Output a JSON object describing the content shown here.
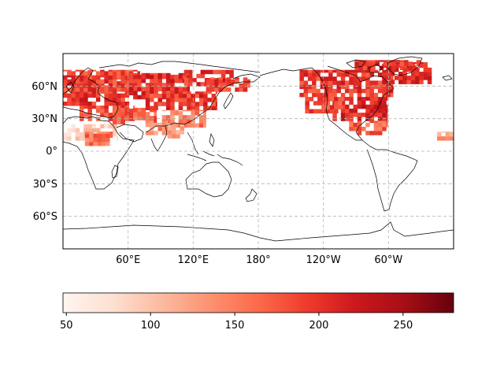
{
  "map": {
    "projection": "PlateCarree",
    "central_longitude": 180,
    "lon_range": [
      5,
      360
    ],
    "lat_range": [
      -90,
      90
    ],
    "gridlines": "dashed gray",
    "lat_labels": [
      "60°N",
      "30°N",
      "0°",
      "30°S",
      "60°S"
    ],
    "lon_labels": [
      "60°E",
      "120°E",
      "180°",
      "120°W",
      "60°W"
    ],
    "field": "heatmap (Reds colormap), land cells north of ~10°S, missing over ocean",
    "regions_shaded": [
      {
        "region": "Europe / North Africa / Sahara",
        "approx_value": 200
      },
      {
        "region": "Siberia / Russia",
        "approx_value": 200
      },
      {
        "region": "South & East Asia",
        "approx_value": 170
      },
      {
        "region": "North America / Canada",
        "approx_value": 210
      },
      {
        "region": "Greenland / Arctic Canada",
        "approx_value": 200
      }
    ]
  },
  "colorbar": {
    "colormap": "Reds",
    "vmin": 48,
    "vmax": 280,
    "ticks": [
      "50",
      "100",
      "150",
      "200",
      "250"
    ],
    "tick_values": [
      50,
      100,
      150,
      200,
      250
    ]
  }
}
